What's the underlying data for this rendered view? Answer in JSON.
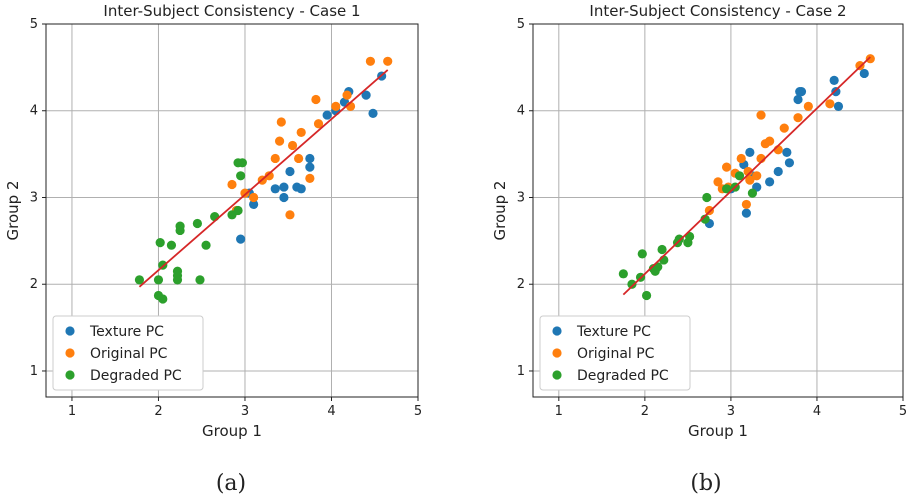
{
  "chart_data": [
    {
      "type": "scatter",
      "panel_label": "(a)",
      "title": "Inter-Subject Consistency - Case 1",
      "xlabel": "Group 1",
      "ylabel": "Group 2",
      "xlim": [
        0.7,
        5
      ],
      "ylim": [
        0.7,
        5
      ],
      "xticks": [
        1,
        2,
        3,
        4,
        5
      ],
      "yticks": [
        1,
        2,
        3,
        4,
        5
      ],
      "grid": true,
      "legend_position": "bottom-left",
      "fit_line": {
        "from": [
          1.78,
          1.97
        ],
        "to": [
          4.65,
          4.47
        ],
        "color": "#d62728"
      },
      "series": [
        {
          "name": "Texture PC",
          "color": "#1f77b4",
          "points": [
            [
              2.95,
              2.52
            ],
            [
              3.05,
              3.05
            ],
            [
              3.1,
              2.92
            ],
            [
              3.35,
              3.1
            ],
            [
              3.45,
              3.0
            ],
            [
              3.45,
              3.12
            ],
            [
              3.52,
              3.3
            ],
            [
              3.6,
              3.12
            ],
            [
              3.65,
              3.1
            ],
            [
              3.75,
              3.45
            ],
            [
              3.75,
              3.35
            ],
            [
              3.95,
              3.95
            ],
            [
              4.05,
              4.0
            ],
            [
              4.15,
              4.1
            ],
            [
              4.2,
              4.22
            ],
            [
              4.4,
              4.18
            ],
            [
              4.48,
              3.97
            ],
            [
              4.58,
              4.4
            ]
          ]
        },
        {
          "name": "Original PC",
          "color": "#ff7f0e",
          "points": [
            [
              2.85,
              3.15
            ],
            [
              2.9,
              2.85
            ],
            [
              3.0,
              3.05
            ],
            [
              3.1,
              3.0
            ],
            [
              3.2,
              3.2
            ],
            [
              3.28,
              3.25
            ],
            [
              3.35,
              3.45
            ],
            [
              3.4,
              3.65
            ],
            [
              3.42,
              3.87
            ],
            [
              3.52,
              2.8
            ],
            [
              3.55,
              3.6
            ],
            [
              3.62,
              3.45
            ],
            [
              3.65,
              3.75
            ],
            [
              3.75,
              3.22
            ],
            [
              3.85,
              3.85
            ],
            [
              3.82,
              4.13
            ],
            [
              4.05,
              4.05
            ],
            [
              4.18,
              4.18
            ],
            [
              4.22,
              4.05
            ],
            [
              4.45,
              4.57
            ],
            [
              4.65,
              4.57
            ]
          ]
        },
        {
          "name": "Degraded PC",
          "color": "#2ca02c",
          "points": [
            [
              1.78,
              2.05
            ],
            [
              2.0,
              2.05
            ],
            [
              2.0,
              1.87
            ],
            [
              2.02,
              2.48
            ],
            [
              2.05,
              1.83
            ],
            [
              2.05,
              2.22
            ],
            [
              2.15,
              2.45
            ],
            [
              2.22,
              2.05
            ],
            [
              2.22,
              2.1
            ],
            [
              2.22,
              2.15
            ],
            [
              2.25,
              2.62
            ],
            [
              2.25,
              2.67
            ],
            [
              2.45,
              2.7
            ],
            [
              2.48,
              2.05
            ],
            [
              2.55,
              2.45
            ],
            [
              2.65,
              2.78
            ],
            [
              2.85,
              2.8
            ],
            [
              2.92,
              2.85
            ],
            [
              2.92,
              3.4
            ],
            [
              2.95,
              3.25
            ],
            [
              2.97,
              3.4
            ]
          ]
        }
      ]
    },
    {
      "type": "scatter",
      "panel_label": "(b)",
      "title": "Inter-Subject Consistency - Case 2",
      "xlabel": "Group 1",
      "ylabel": "Group 2",
      "xlim": [
        0.7,
        5
      ],
      "ylim": [
        0.7,
        5
      ],
      "xticks": [
        1,
        2,
        3,
        4,
        5
      ],
      "yticks": [
        1,
        2,
        3,
        4,
        5
      ],
      "grid": true,
      "legend_position": "bottom-left",
      "fit_line": {
        "from": [
          1.75,
          1.88
        ],
        "to": [
          4.62,
          4.62
        ],
        "color": "#d62728"
      },
      "series": [
        {
          "name": "Texture PC",
          "color": "#1f77b4",
          "points": [
            [
              2.75,
              2.7
            ],
            [
              3.0,
              3.1
            ],
            [
              3.15,
              3.38
            ],
            [
              3.18,
              2.82
            ],
            [
              3.22,
              3.52
            ],
            [
              3.25,
              3.25
            ],
            [
              3.3,
              3.12
            ],
            [
              3.45,
              3.18
            ],
            [
              3.55,
              3.3
            ],
            [
              3.65,
              3.52
            ],
            [
              3.68,
              3.4
            ],
            [
              3.78,
              4.13
            ],
            [
              3.8,
              4.22
            ],
            [
              3.82,
              4.22
            ],
            [
              4.2,
              4.35
            ],
            [
              4.22,
              4.22
            ],
            [
              4.25,
              4.05
            ],
            [
              4.55,
              4.43
            ]
          ]
        },
        {
          "name": "Original PC",
          "color": "#ff7f0e",
          "points": [
            [
              2.75,
              2.85
            ],
            [
              2.85,
              3.18
            ],
            [
              2.9,
              3.1
            ],
            [
              2.95,
              3.35
            ],
            [
              2.97,
              3.12
            ],
            [
              3.05,
              3.28
            ],
            [
              3.12,
              3.45
            ],
            [
              3.18,
              2.92
            ],
            [
              3.2,
              3.3
            ],
            [
              3.22,
              3.2
            ],
            [
              3.3,
              3.25
            ],
            [
              3.35,
              3.45
            ],
            [
              3.35,
              3.95
            ],
            [
              3.4,
              3.62
            ],
            [
              3.45,
              3.65
            ],
            [
              3.55,
              3.55
            ],
            [
              3.62,
              3.8
            ],
            [
              3.78,
              3.92
            ],
            [
              3.9,
              4.05
            ],
            [
              4.15,
              4.08
            ],
            [
              4.5,
              4.52
            ],
            [
              4.62,
              4.6
            ]
          ]
        },
        {
          "name": "Degraded PC",
          "color": "#2ca02c",
          "points": [
            [
              1.75,
              2.12
            ],
            [
              1.85,
              2.0
            ],
            [
              1.95,
              2.08
            ],
            [
              1.97,
              2.35
            ],
            [
              2.02,
              1.87
            ],
            [
              2.1,
              2.18
            ],
            [
              2.12,
              2.15
            ],
            [
              2.15,
              2.2
            ],
            [
              2.2,
              2.4
            ],
            [
              2.22,
              2.28
            ],
            [
              2.38,
              2.48
            ],
            [
              2.4,
              2.52
            ],
            [
              2.5,
              2.48
            ],
            [
              2.52,
              2.55
            ],
            [
              2.7,
              2.75
            ],
            [
              2.72,
              3.0
            ],
            [
              2.95,
              3.1
            ],
            [
              3.05,
              3.12
            ],
            [
              3.1,
              3.25
            ],
            [
              3.25,
              3.05
            ]
          ]
        }
      ]
    }
  ]
}
